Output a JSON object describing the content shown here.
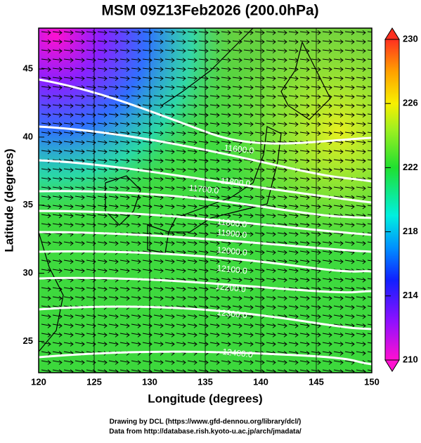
{
  "map": {
    "title": "MSM 09Z13Feb2026 (200.0hPa)",
    "xlabel": "Longitude (degrees)",
    "ylabel": "Latitude  (degrees)",
    "xlim": [
      120,
      150
    ],
    "ylim": [
      22.7,
      48
    ],
    "xticks": [
      120,
      125,
      130,
      135,
      140,
      145,
      150
    ],
    "yticks": [
      25,
      30,
      35,
      40,
      45
    ],
    "colorbar": {
      "lim": [
        210,
        230
      ],
      "ticks": [
        210,
        214,
        218,
        222,
        226,
        230
      ]
    },
    "contour_labels": [
      "11600.0",
      "11700.0",
      "11800.0",
      "11800.0",
      "11900.0",
      "12000.0",
      "12100.0",
      "12200.0",
      "12300.0",
      "12400.0"
    ],
    "credits": [
      "Drawing by DCL (https://www.gfd-dennou.org/library/dcl/)",
      "Data from http://database.rish.kyoto-u.ac.jp/arch/jmadata/"
    ]
  }
}
